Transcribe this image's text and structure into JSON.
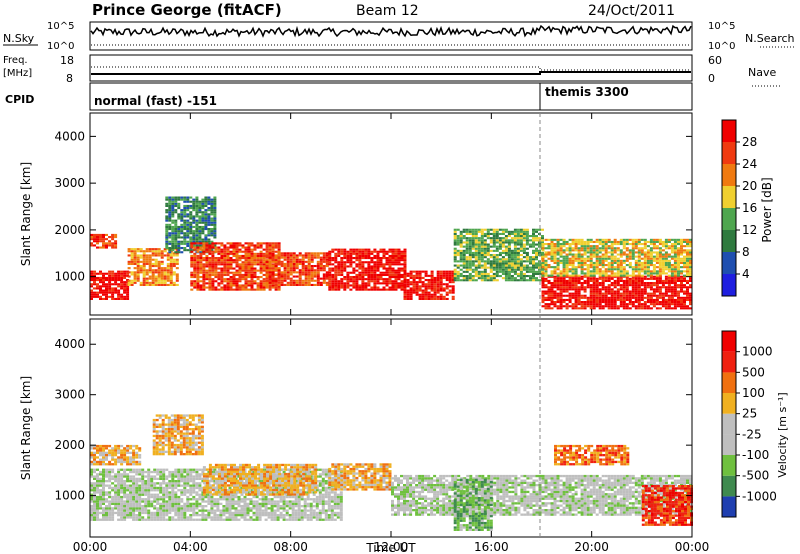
{
  "header": {
    "station": "Prince George (fitACF)",
    "beam": "Beam 12",
    "date": "24/Oct/2011"
  },
  "noise_panel": {
    "left_label": "N.Sky",
    "right_label": "N.Search",
    "top_tick": "10^5",
    "bottom_tick": "10^0"
  },
  "freq_panel": {
    "left_label_1": "Freq.",
    "left_label_2": "[MHz]",
    "right_label": "Nave",
    "left_ticks": [
      "18",
      "8"
    ],
    "right_ticks": [
      "60",
      "0"
    ]
  },
  "cpid_panel": {
    "label": "CPID",
    "modes": [
      {
        "name": "normal (fast) -151",
        "start_hour": 0
      },
      {
        "name": "themis 3300",
        "start_hour": 18
      }
    ]
  },
  "chart_data": [
    {
      "type": "heatmap",
      "title": "",
      "xlabel": "Time UT",
      "ylabel": "Slant Range [km]",
      "xlim": [
        0,
        24
      ],
      "ylim": [
        180,
        4500
      ],
      "x_tick_labels": [
        "00:00",
        "04:00",
        "08:00",
        "12:00",
        "16:00",
        "20:00",
        "00:00"
      ],
      "y_tick_labels": [
        "1000",
        "2000",
        "3000",
        "4000"
      ],
      "colorbar": {
        "label": "Power [dB]",
        "min": 0,
        "max": 32,
        "tick_values": [
          "4",
          "8",
          "12",
          "16",
          "20",
          "24",
          "28"
        ],
        "colors": [
          "#1f1fe0",
          "#1f4fb0",
          "#2f7a3f",
          "#4fa64f",
          "#f0d030",
          "#f07a10",
          "#f03a10",
          "#f00000"
        ]
      },
      "echo_bands": [
        {
          "t0": 0.0,
          "t1": 1.5,
          "r0": 500,
          "r1": 1100,
          "level": 7
        },
        {
          "t0": 0.0,
          "t1": 1.0,
          "r0": 1600,
          "r1": 1900,
          "level": 6
        },
        {
          "t0": 1.5,
          "t1": 3.5,
          "r0": 800,
          "r1": 1600,
          "level": 5
        },
        {
          "t0": 3.0,
          "t1": 5.0,
          "r0": 1500,
          "r1": 2700,
          "level": 2
        },
        {
          "t0": 4.0,
          "t1": 7.5,
          "r0": 700,
          "r1": 1700,
          "level": 6
        },
        {
          "t0": 7.0,
          "t1": 9.5,
          "r0": 800,
          "r1": 1500,
          "level": 6
        },
        {
          "t0": 9.5,
          "t1": 12.5,
          "r0": 700,
          "r1": 1600,
          "level": 7
        },
        {
          "t0": 12.5,
          "t1": 14.5,
          "r0": 500,
          "r1": 1100,
          "level": 7
        },
        {
          "t0": 14.5,
          "t1": 18.0,
          "r0": 900,
          "r1": 2000,
          "level": 3
        },
        {
          "t0": 18.0,
          "t1": 24.0,
          "r0": 300,
          "r1": 1000,
          "level": 7
        },
        {
          "t0": 18.0,
          "t1": 24.0,
          "r0": 1000,
          "r1": 1800,
          "level": 4
        }
      ]
    },
    {
      "type": "heatmap",
      "title": "",
      "xlabel": "Time UT",
      "ylabel": "Slant Range [km]",
      "xlim": [
        0,
        24
      ],
      "ylim": [
        180,
        4500
      ],
      "x_tick_labels": [
        "00:00",
        "04:00",
        "08:00",
        "12:00",
        "16:00",
        "20:00",
        "00:00"
      ],
      "y_tick_labels": [
        "1000",
        "2000",
        "3000",
        "4000"
      ],
      "colorbar": {
        "label": "Velocity [m s⁻¹]",
        "tick_values": [
          "1000",
          "500",
          "100",
          "25",
          "-25",
          "-100",
          "-500",
          "-1000"
        ],
        "colors": [
          "#1f3fb0",
          "#3f8a4f",
          "#6fc03f",
          "#bfbfbf",
          "#bfbfbf",
          "#f0b020",
          "#f07010",
          "#f02010",
          "#f00000"
        ]
      },
      "echo_bands": [
        {
          "t0": 0.0,
          "t1": 10.0,
          "r0": 500,
          "r1": 1500,
          "level": 3
        },
        {
          "t0": 0.0,
          "t1": 2.0,
          "r0": 1600,
          "r1": 2000,
          "level": 5
        },
        {
          "t0": 2.5,
          "t1": 4.5,
          "r0": 1800,
          "r1": 2600,
          "level": 5
        },
        {
          "t0": 4.5,
          "t1": 9.0,
          "r0": 1000,
          "r1": 1600,
          "level": 5
        },
        {
          "t0": 9.5,
          "t1": 12.0,
          "r0": 1100,
          "r1": 1600,
          "level": 5
        },
        {
          "t0": 12.0,
          "t1": 24.0,
          "r0": 600,
          "r1": 1400,
          "level": 3
        },
        {
          "t0": 14.5,
          "t1": 16.0,
          "r0": 300,
          "r1": 1300,
          "level": 2
        },
        {
          "t0": 18.5,
          "t1": 21.5,
          "r0": 1600,
          "r1": 2000,
          "level": 6
        },
        {
          "t0": 22.0,
          "t1": 24.0,
          "r0": 400,
          "r1": 1200,
          "level": 7
        }
      ]
    }
  ]
}
